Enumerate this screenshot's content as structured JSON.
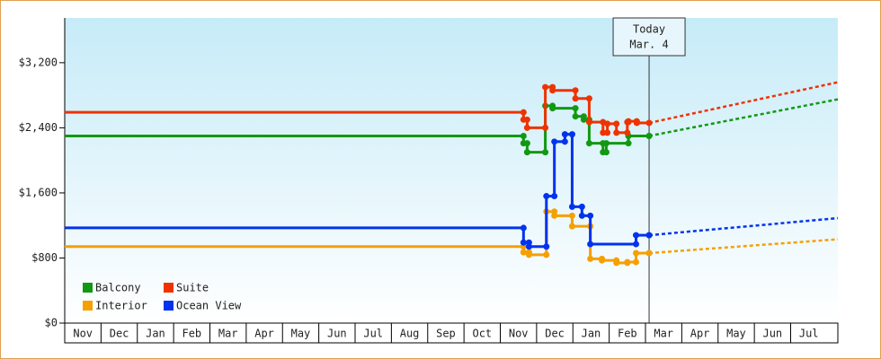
{
  "chart_data": {
    "type": "step-line",
    "xlim": [
      0,
      21.3
    ],
    "xticks": [
      {
        "value": 0,
        "label": "Nov"
      },
      {
        "value": 1,
        "label": "Dec"
      },
      {
        "value": 2,
        "label": "Jan"
      },
      {
        "value": 3,
        "label": "Feb"
      },
      {
        "value": 4,
        "label": "Mar"
      },
      {
        "value": 5,
        "label": "Apr"
      },
      {
        "value": 6,
        "label": "May"
      },
      {
        "value": 7,
        "label": "Jun"
      },
      {
        "value": 8,
        "label": "Jul"
      },
      {
        "value": 9,
        "label": "Aug"
      },
      {
        "value": 10,
        "label": "Sep"
      },
      {
        "value": 11,
        "label": "Oct"
      },
      {
        "value": 12,
        "label": "Nov"
      },
      {
        "value": 13,
        "label": "Dec"
      },
      {
        "value": 14,
        "label": "Jan"
      },
      {
        "value": 15,
        "label": "Feb"
      },
      {
        "value": 16,
        "label": "Mar"
      },
      {
        "value": 17,
        "label": "Apr"
      },
      {
        "value": 18,
        "label": "May"
      },
      {
        "value": 19,
        "label": "Jun"
      },
      {
        "value": 20,
        "label": "Jul"
      }
    ],
    "ylim": [
      0,
      3750
    ],
    "yticks": [
      {
        "value": 0,
        "label": "$0"
      },
      {
        "value": 800,
        "label": "$800"
      },
      {
        "value": 1600,
        "label": "$1,600"
      },
      {
        "value": 2400,
        "label": "$2,400"
      },
      {
        "value": 3200,
        "label": "$3,200"
      }
    ],
    "today": {
      "x": 16.1,
      "label": "Today",
      "date": "Mar. 4"
    },
    "legend": "lower left",
    "series": [
      {
        "name": "Balcony",
        "color": "#119911",
        "x": [
          0,
          12.64,
          12.74,
          13.24,
          13.44,
          14.07,
          14.3,
          14.45,
          14.83,
          14.92,
          15.53,
          16.1
        ],
        "values": [
          2300,
          2210,
          2100,
          2670,
          2640,
          2540,
          2500,
          2210,
          2100,
          2210,
          2300,
          2300
        ],
        "forecast_x": [
          16.1,
          21.3
        ],
        "forecast_values": [
          2300,
          2750
        ]
      },
      {
        "name": "Suite",
        "color": "#ee3300",
        "x": [
          0,
          12.64,
          12.74,
          13.24,
          13.44,
          14.07,
          14.45,
          14.83,
          14.95,
          15.2,
          15.5,
          15.53,
          15.76,
          16.1
        ],
        "values": [
          2590,
          2500,
          2400,
          2900,
          2860,
          2760,
          2470,
          2340,
          2450,
          2340,
          2470,
          2480,
          2460,
          2460
        ],
        "forecast_x": [
          16.1,
          21.3
        ],
        "forecast_values": [
          2460,
          2960
        ]
      },
      {
        "name": "Interior",
        "color": "#f5a000",
        "x": [
          0,
          12.64,
          12.79,
          13.27,
          13.49,
          13.98,
          14.48,
          14.8,
          15.2,
          15.5,
          15.74,
          16.1
        ],
        "values": [
          940,
          870,
          840,
          1370,
          1320,
          1190,
          790,
          770,
          740,
          750,
          860,
          860
        ],
        "forecast_x": [
          16.1,
          21.3
        ],
        "forecast_values": [
          860,
          1030
        ]
      },
      {
        "name": "Ocean View",
        "color": "#0033ee",
        "x": [
          0,
          12.64,
          12.79,
          13.27,
          13.49,
          13.78,
          13.98,
          14.25,
          14.48,
          15.74,
          16.1
        ],
        "values": [
          1170,
          990,
          940,
          1560,
          2230,
          2320,
          1430,
          1320,
          970,
          1080,
          1080
        ],
        "forecast_x": [
          16.1,
          21.3
        ],
        "forecast_values": [
          1080,
          1290
        ]
      }
    ]
  }
}
